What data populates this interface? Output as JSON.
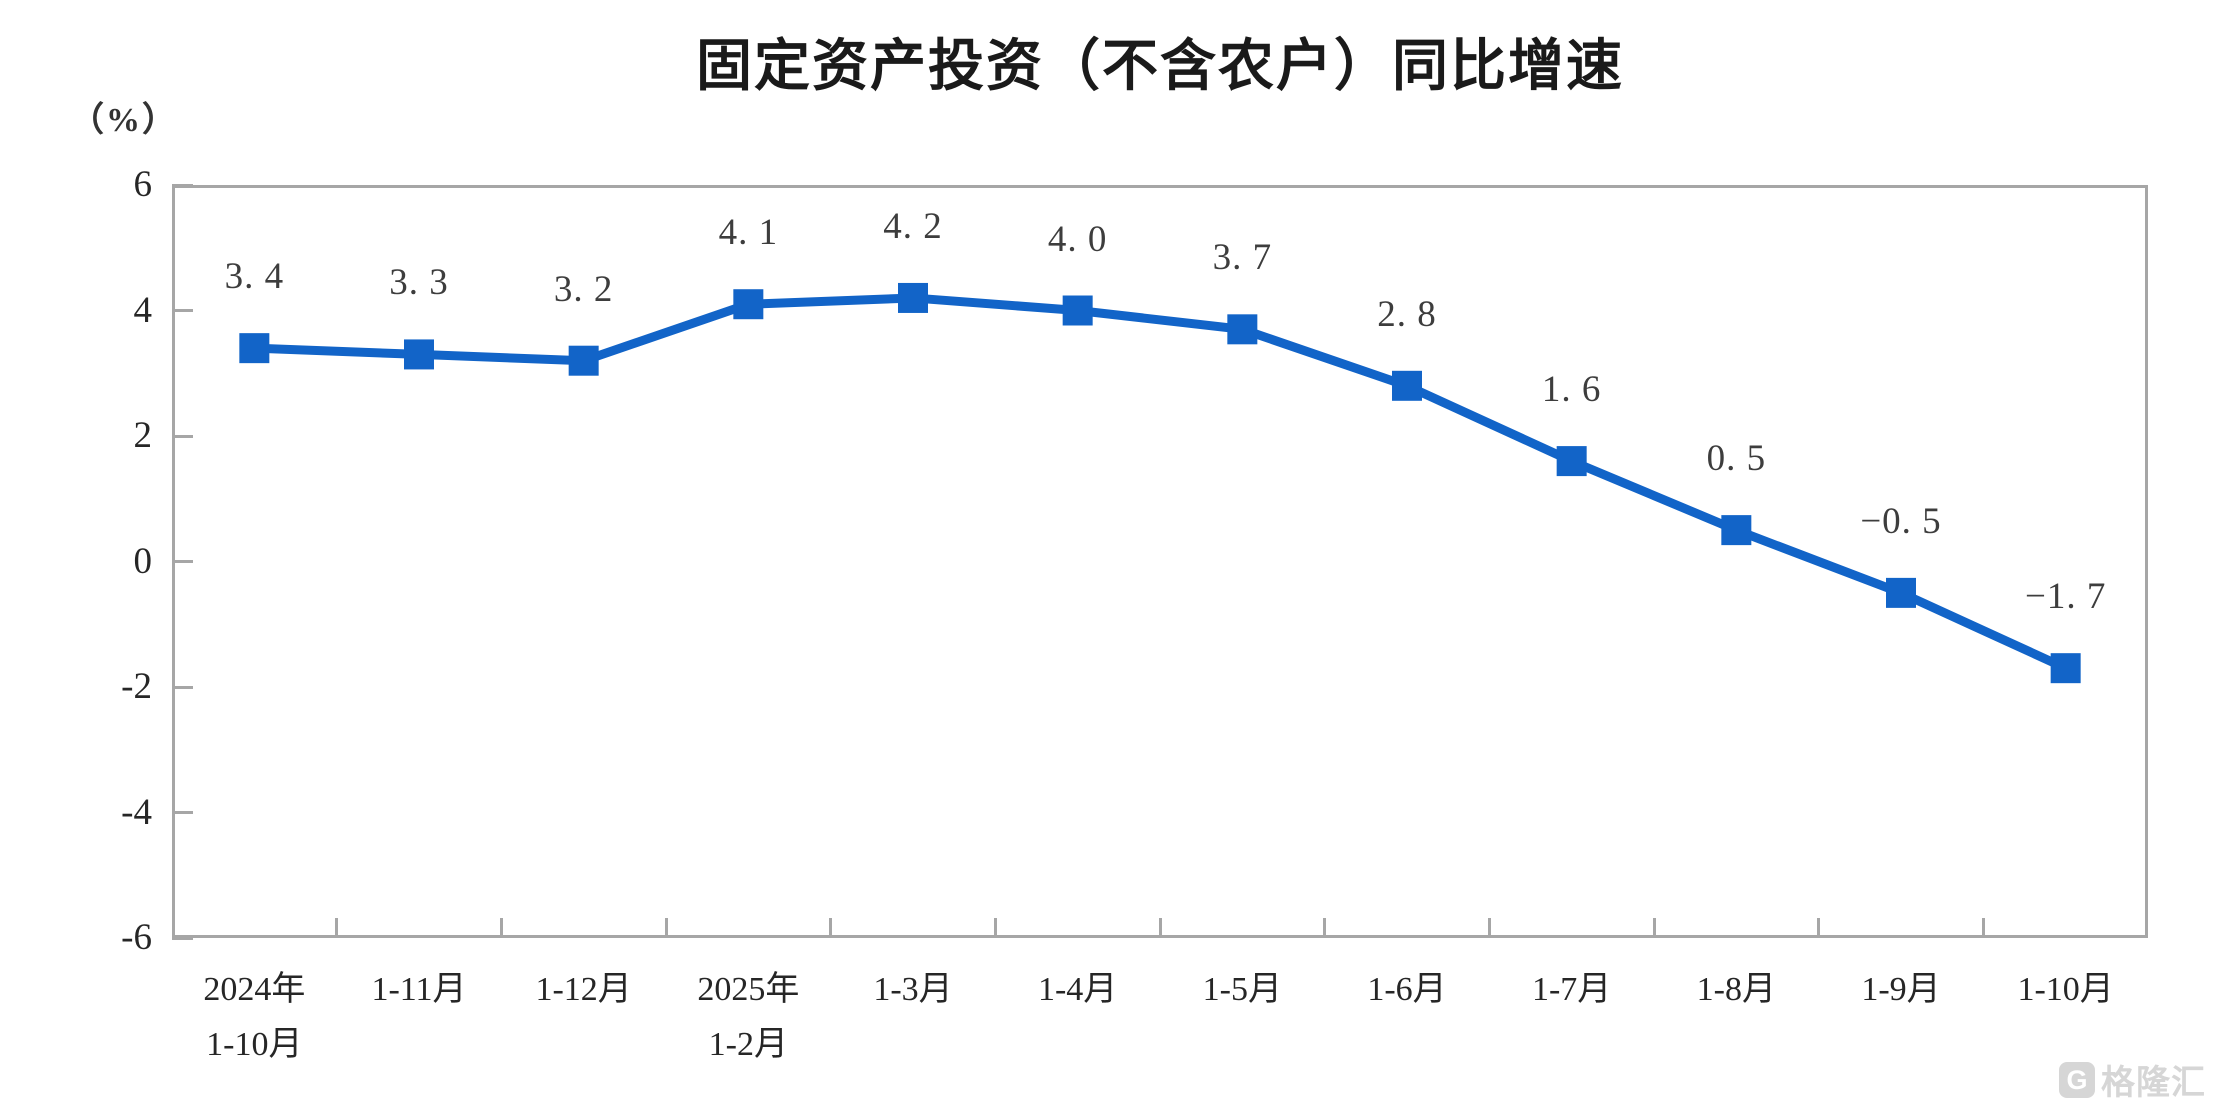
{
  "title": "固定资产投资（不含农户）同比增速",
  "y_axis_unit_label": "（%）",
  "watermark": {
    "logo_letter": "G",
    "brand_text": "格隆汇",
    "color": "#D6D6D6"
  },
  "chart_data": {
    "type": "line",
    "title": "固定资产投资（不含农户）同比增速",
    "ylabel": "（%）",
    "xlabel": "",
    "categories": [
      "2024年\n1-10月",
      "1-11月",
      "1-12月",
      "2025年\n1-2月",
      "1-3月",
      "1-4月",
      "1-5月",
      "1-6月",
      "1-7月",
      "1-8月",
      "1-9月",
      "1-10月"
    ],
    "values": [
      3.4,
      3.3,
      3.2,
      4.1,
      4.2,
      4.0,
      3.7,
      2.8,
      1.6,
      0.5,
      -0.5,
      -1.7
    ],
    "point_labels": [
      "3. 4",
      "3. 3",
      "3. 2",
      "4. 1",
      "4. 2",
      "4. 0",
      "3. 7",
      "2. 8",
      "1. 6",
      "0. 5",
      "−0. 5",
      "−1. 7"
    ],
    "y_ticks": [
      6,
      4,
      2,
      0,
      -2,
      -4,
      -6
    ],
    "ylim": [
      -6,
      6
    ],
    "line_color": "#1264C8",
    "marker": "square",
    "marker_size": 30,
    "line_width": 9,
    "gridlines": false,
    "legend": "none",
    "axis_color": "#A6A6A6",
    "plot_border": true,
    "tick_style": "inward, x ticks between categories"
  }
}
